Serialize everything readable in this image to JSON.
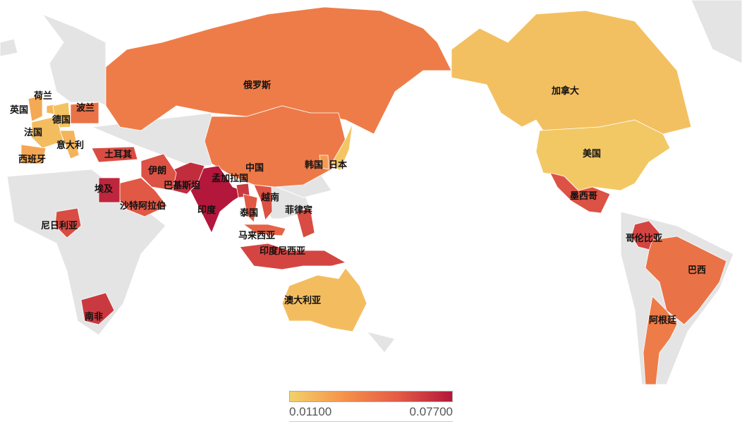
{
  "legend": {
    "min_label": "0.01100",
    "max_label": "0.07700",
    "min": 0.011,
    "max": 0.077,
    "colors": [
      "#f2d169",
      "#f5924a",
      "#e35b45",
      "#b3173b"
    ]
  },
  "no_data_color": "#e4e4e4",
  "countries": [
    {
      "name": "俄罗斯",
      "value": 0.042
    },
    {
      "name": "中国",
      "value": 0.043
    },
    {
      "name": "加拿大",
      "value": 0.017
    },
    {
      "name": "美国",
      "value": 0.014
    },
    {
      "name": "墨西哥",
      "value": 0.058
    },
    {
      "name": "哥伦比亚",
      "value": 0.062
    },
    {
      "name": "巴西",
      "value": 0.046
    },
    {
      "name": "阿根廷",
      "value": 0.042
    },
    {
      "name": "澳大利亚",
      "value": 0.018
    },
    {
      "name": "印度",
      "value": 0.077
    },
    {
      "name": "巴基斯坦",
      "value": 0.07
    },
    {
      "name": "孟加拉国",
      "value": 0.066
    },
    {
      "name": "伊朗",
      "value": 0.058
    },
    {
      "name": "沙特阿拉伯",
      "value": 0.056
    },
    {
      "name": "埃及",
      "value": 0.072
    },
    {
      "name": "土耳其",
      "value": 0.06
    },
    {
      "name": "尼日利亚",
      "value": 0.06
    },
    {
      "name": "南非",
      "value": 0.066
    },
    {
      "name": "印度尼西亚",
      "value": 0.062
    },
    {
      "name": "菲律宾",
      "value": 0.06
    },
    {
      "name": "越南",
      "value": 0.058
    },
    {
      "name": "泰国",
      "value": 0.056
    },
    {
      "name": "马来西亚",
      "value": 0.052
    },
    {
      "name": "日本",
      "value": 0.015
    },
    {
      "name": "韩国",
      "value": 0.03
    },
    {
      "name": "英国",
      "value": 0.025
    },
    {
      "name": "荷兰",
      "value": 0.02
    },
    {
      "name": "德国",
      "value": 0.016
    },
    {
      "name": "法国",
      "value": 0.018
    },
    {
      "name": "意大利",
      "value": 0.021
    },
    {
      "name": "西班牙",
      "value": 0.026
    },
    {
      "name": "波兰",
      "value": 0.046
    }
  ]
}
